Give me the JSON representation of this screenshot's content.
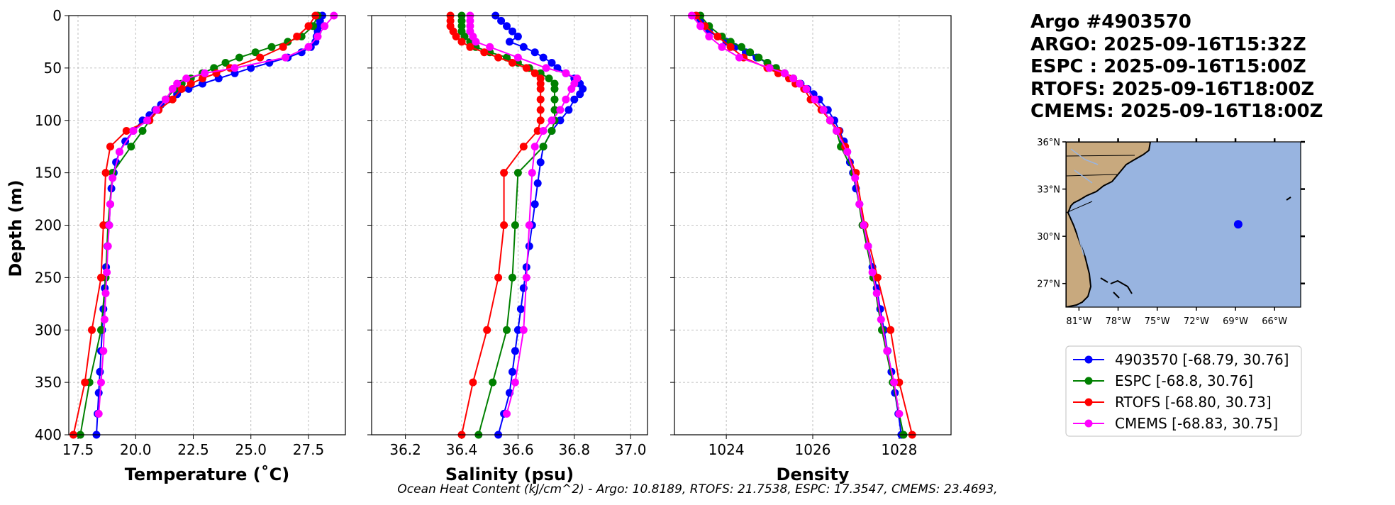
{
  "title_lines": [
    "Argo #4903570",
    "ARGO: 2025-09-16T15:32Z",
    "ESPC : 2025-09-16T15:00Z",
    "RTOFS: 2025-09-16T18:00Z",
    "CMEMS: 2025-09-16T18:00Z"
  ],
  "footer": "Ocean Heat Content (kJ/cm^2) - Argo: 10.8189,  RTOFS: 21.7538,  ESPC: 17.3547,  CMEMS: 23.4693,",
  "colors": {
    "argo": "#0000ff",
    "espc": "#008000",
    "rtofs": "#ff0000",
    "cmems": "#ff00ff",
    "land": "#c8a97e",
    "ocean": "#98b4e0",
    "grid": "#b0b0b0"
  },
  "legend": [
    {
      "label": "4903570 [-68.79, 30.76]",
      "color": "#0000ff"
    },
    {
      "label": "ESPC [-68.8, 30.76]",
      "color": "#008000"
    },
    {
      "label": "RTOFS [-68.80, 30.73]",
      "color": "#ff0000"
    },
    {
      "label": "CMEMS [-68.83, 30.75]",
      "color": "#ff00ff"
    }
  ],
  "map": {
    "lon_range": [
      -82,
      -64
    ],
    "lat_range": [
      25.5,
      36
    ],
    "lat_ticks": [
      "36°N",
      "33°N",
      "30°N",
      "27°N"
    ],
    "lon_ticks": [
      "81°W",
      "78°W",
      "75°W",
      "72°W",
      "69°W",
      "66°W"
    ],
    "float_position": {
      "lon": -68.79,
      "lat": 30.76
    }
  },
  "chart_data": [
    {
      "type": "line",
      "name": "temperature",
      "xlabel": "Temperature (˚C)",
      "ylabel": "Depth (m)",
      "xlim": [
        17.1,
        29.1
      ],
      "ylim": [
        400,
        0
      ],
      "xticks": [
        "17.5",
        "20.0",
        "22.5",
        "25.0",
        "27.5"
      ],
      "yticks": [
        "0",
        "50",
        "100",
        "150",
        "200",
        "250",
        "300",
        "350",
        "400"
      ],
      "series": [
        {
          "name": "Argo",
          "depth": [
            0,
            5,
            10,
            15,
            20,
            25,
            30,
            35,
            40,
            45,
            50,
            55,
            60,
            65,
            70,
            75,
            80,
            85,
            90,
            95,
            100,
            110,
            120,
            130,
            140,
            150,
            165,
            180,
            200,
            220,
            240,
            260,
            280,
            300,
            320,
            340,
            360,
            380,
            400
          ],
          "values": [
            28.1,
            28.0,
            27.95,
            27.9,
            27.85,
            27.8,
            27.6,
            27.2,
            26.6,
            25.8,
            25.0,
            24.3,
            23.6,
            22.9,
            22.3,
            21.8,
            21.4,
            21.1,
            20.85,
            20.6,
            20.3,
            19.9,
            19.55,
            19.3,
            19.15,
            19.05,
            18.95,
            18.9,
            18.85,
            18.78,
            18.72,
            18.66,
            18.6,
            18.55,
            18.5,
            18.45,
            18.4,
            18.35,
            18.3
          ]
        },
        {
          "name": "ESPC",
          "depth": [
            0,
            10,
            20,
            25,
            30,
            35,
            40,
            45,
            50,
            55,
            60,
            65,
            70,
            80,
            90,
            100,
            110,
            125,
            150,
            200,
            250,
            300,
            350,
            400
          ],
          "values": [
            27.9,
            27.7,
            27.2,
            26.6,
            25.9,
            25.2,
            24.5,
            23.9,
            23.4,
            22.9,
            22.4,
            22.0,
            21.7,
            21.3,
            20.9,
            20.6,
            20.3,
            19.8,
            19.0,
            18.8,
            18.7,
            18.5,
            18.0,
            17.6
          ]
        },
        {
          "name": "RTOFS",
          "depth": [
            0,
            10,
            20,
            30,
            40,
            50,
            55,
            60,
            65,
            70,
            80,
            90,
            100,
            110,
            125,
            150,
            200,
            250,
            300,
            350,
            400
          ],
          "values": [
            27.8,
            27.5,
            27.0,
            26.4,
            25.4,
            24.1,
            23.5,
            22.9,
            22.4,
            22.0,
            21.6,
            21.0,
            20.6,
            19.6,
            18.9,
            18.7,
            18.6,
            18.5,
            18.1,
            17.8,
            17.3
          ]
        },
        {
          "name": "CMEMS",
          "depth": [
            0,
            10,
            20,
            30,
            40,
            50,
            55,
            60,
            65,
            70,
            80,
            90,
            100,
            110,
            130,
            155,
            180,
            200,
            220,
            245,
            265,
            290,
            320,
            350,
            380
          ],
          "values": [
            28.6,
            28.2,
            27.9,
            27.5,
            26.5,
            24.3,
            23.0,
            22.2,
            21.8,
            21.6,
            21.3,
            20.9,
            20.5,
            19.9,
            19.3,
            19.0,
            18.9,
            18.85,
            18.8,
            18.75,
            18.7,
            18.65,
            18.6,
            18.5,
            18.4
          ]
        }
      ]
    },
    {
      "type": "line",
      "name": "salinity",
      "xlabel": "Salinity (psu)",
      "xlim": [
        36.08,
        37.06
      ],
      "ylim": [
        400,
        0
      ],
      "xticks": [
        "36.2",
        "36.4",
        "36.6",
        "36.8",
        "37.0"
      ],
      "series": [
        {
          "name": "Argo",
          "depth": [
            0,
            5,
            10,
            15,
            20,
            25,
            30,
            35,
            40,
            45,
            50,
            55,
            60,
            65,
            70,
            75,
            80,
            90,
            100,
            110,
            125,
            140,
            160,
            180,
            200,
            220,
            240,
            260,
            280,
            300,
            320,
            340,
            360,
            380,
            400
          ],
          "values": [
            36.52,
            36.54,
            36.56,
            36.58,
            36.6,
            36.57,
            36.62,
            36.66,
            36.69,
            36.72,
            36.74,
            36.77,
            36.8,
            36.82,
            36.83,
            36.82,
            36.8,
            36.78,
            36.75,
            36.72,
            36.69,
            36.68,
            36.67,
            36.66,
            36.65,
            36.64,
            36.63,
            36.62,
            36.61,
            36.6,
            36.59,
            36.58,
            36.57,
            36.55,
            36.53
          ]
        },
        {
          "name": "ESPC",
          "depth": [
            0,
            5,
            10,
            15,
            20,
            25,
            30,
            35,
            40,
            45,
            50,
            55,
            60,
            65,
            70,
            80,
            90,
            100,
            110,
            125,
            150,
            200,
            250,
            300,
            350,
            400
          ],
          "values": [
            36.4,
            36.4,
            36.4,
            36.4,
            36.41,
            36.43,
            36.45,
            36.5,
            36.56,
            36.6,
            36.64,
            36.68,
            36.71,
            36.73,
            36.73,
            36.73,
            36.73,
            36.73,
            36.72,
            36.69,
            36.6,
            36.59,
            36.58,
            36.56,
            36.51,
            36.46
          ]
        },
        {
          "name": "RTOFS",
          "depth": [
            0,
            5,
            10,
            15,
            20,
            25,
            30,
            35,
            40,
            45,
            50,
            55,
            60,
            65,
            70,
            80,
            90,
            100,
            110,
            125,
            150,
            200,
            250,
            300,
            350,
            400
          ],
          "values": [
            36.36,
            36.36,
            36.36,
            36.37,
            36.38,
            36.4,
            36.43,
            36.48,
            36.53,
            36.58,
            36.63,
            36.66,
            36.68,
            36.68,
            36.68,
            36.68,
            36.68,
            36.68,
            36.67,
            36.62,
            36.55,
            36.55,
            36.53,
            36.49,
            36.44,
            36.4
          ]
        },
        {
          "name": "CMEMS",
          "depth": [
            0,
            5,
            10,
            15,
            20,
            25,
            30,
            40,
            50,
            55,
            60,
            65,
            70,
            80,
            90,
            100,
            110,
            125,
            150,
            200,
            250,
            300,
            350,
            380
          ],
          "values": [
            36.43,
            36.43,
            36.43,
            36.43,
            36.44,
            36.45,
            36.5,
            36.6,
            36.7,
            36.77,
            36.81,
            36.8,
            36.79,
            36.77,
            36.75,
            36.72,
            36.69,
            36.66,
            36.65,
            36.64,
            36.63,
            36.62,
            36.59,
            36.56
          ]
        }
      ]
    },
    {
      "type": "line",
      "name": "density",
      "xlabel": "Density",
      "xlim": [
        1022.8,
        1029.2
      ],
      "ylim": [
        400,
        0
      ],
      "xticks": [
        "1024",
        "1026",
        "1028"
      ],
      "series": [
        {
          "name": "Argo",
          "depth": [
            0,
            5,
            10,
            15,
            20,
            25,
            30,
            35,
            40,
            45,
            50,
            55,
            60,
            65,
            70,
            75,
            80,
            90,
            100,
            110,
            120,
            130,
            140,
            150,
            165,
            180,
            200,
            220,
            240,
            260,
            280,
            300,
            320,
            340,
            360,
            380,
            400
          ],
          "values": [
            1023.3,
            1023.4,
            1023.5,
            1023.6,
            1023.8,
            1024.0,
            1024.2,
            1024.45,
            1024.7,
            1024.95,
            1025.15,
            1025.35,
            1025.55,
            1025.72,
            1025.88,
            1026.02,
            1026.15,
            1026.35,
            1026.5,
            1026.62,
            1026.72,
            1026.8,
            1026.86,
            1026.93,
            1027.0,
            1027.08,
            1027.18,
            1027.28,
            1027.38,
            1027.48,
            1027.56,
            1027.65,
            1027.73,
            1027.82,
            1027.9,
            1027.98,
            1028.05
          ]
        },
        {
          "name": "ESPC",
          "depth": [
            0,
            10,
            20,
            25,
            30,
            35,
            40,
            45,
            50,
            55,
            60,
            65,
            70,
            80,
            90,
            100,
            110,
            125,
            150,
            200,
            250,
            300,
            350,
            400
          ],
          "values": [
            1023.4,
            1023.6,
            1023.9,
            1024.1,
            1024.35,
            1024.55,
            1024.75,
            1024.95,
            1025.15,
            1025.35,
            1025.55,
            1025.7,
            1025.85,
            1026.05,
            1026.25,
            1026.4,
            1026.55,
            1026.65,
            1026.95,
            1027.15,
            1027.4,
            1027.6,
            1027.85,
            1028.1
          ]
        },
        {
          "name": "RTOFS",
          "depth": [
            0,
            10,
            20,
            30,
            40,
            50,
            55,
            60,
            65,
            70,
            80,
            90,
            100,
            110,
            125,
            150,
            200,
            250,
            300,
            350,
            400
          ],
          "values": [
            1023.3,
            1023.5,
            1023.8,
            1024.1,
            1024.4,
            1024.95,
            1025.2,
            1025.45,
            1025.6,
            1025.8,
            1025.95,
            1026.2,
            1026.4,
            1026.6,
            1026.75,
            1027.0,
            1027.2,
            1027.5,
            1027.8,
            1028.0,
            1028.3
          ]
        },
        {
          "name": "CMEMS",
          "depth": [
            0,
            10,
            20,
            30,
            40,
            50,
            55,
            60,
            65,
            70,
            80,
            90,
            100,
            110,
            130,
            155,
            180,
            200,
            220,
            245,
            265,
            290,
            320,
            350,
            380
          ],
          "values": [
            1023.2,
            1023.4,
            1023.6,
            1023.9,
            1024.3,
            1025.0,
            1025.35,
            1025.55,
            1025.7,
            1025.85,
            1026.05,
            1026.25,
            1026.4,
            1026.55,
            1026.8,
            1026.98,
            1027.08,
            1027.18,
            1027.28,
            1027.38,
            1027.48,
            1027.58,
            1027.72,
            1027.88,
            1028.0
          ]
        }
      ]
    }
  ]
}
